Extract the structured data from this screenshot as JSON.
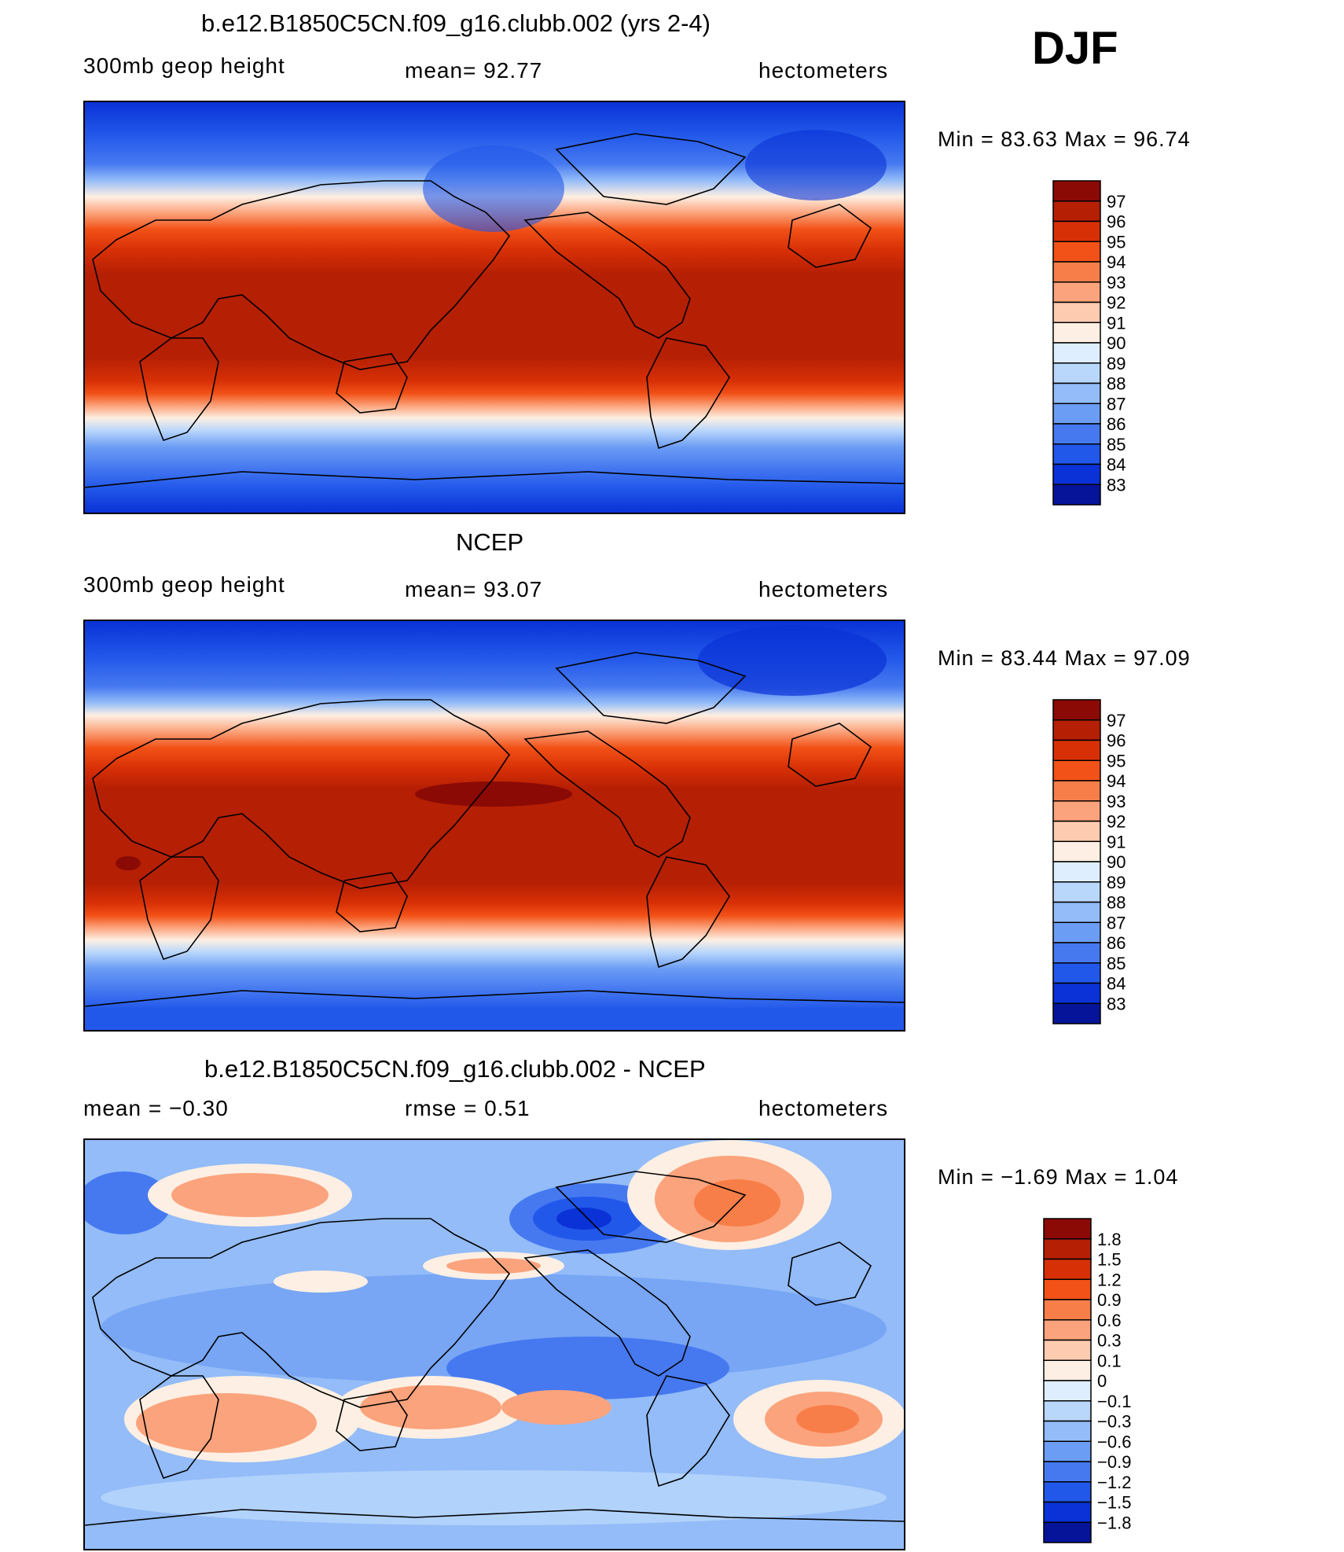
{
  "season": "DJF",
  "colorbar_colors_main": [
    "#8b0a05",
    "#b51f04",
    "#d83006",
    "#f25117",
    "#f87e49",
    "#fba37c",
    "#fdcbb0",
    "#fdefe3",
    "#deeefe",
    "#b9d7fb",
    "#93bcf8",
    "#6c9df4",
    "#4679f0",
    "#2258ea",
    "#0a32d6",
    "#06149a"
  ],
  "colorbar_colors_diff": [
    "#8b0a05",
    "#b51f04",
    "#d83006",
    "#f25117",
    "#f87e49",
    "#fba37c",
    "#fdcbb0",
    "#fdefe3",
    "#deeefe",
    "#b9d7fb",
    "#93bcf8",
    "#6c9df4",
    "#4679f0",
    "#2258ea",
    "#0a32d6",
    "#06149a"
  ],
  "panels": [
    {
      "title": "b.e12.B1850C5CN.f09_g16.clubb.002 (yrs 2-4)",
      "left_label": "300mb  geop  height",
      "center_label": "mean=   92.77",
      "right_label": "hectometers",
      "minmax": "Min  =    83.63  Max  =    96.74",
      "colorbar_labels": [
        "97",
        "96",
        "95",
        "94",
        "93",
        "92",
        "91",
        "90",
        "89",
        "88",
        "87",
        "86",
        "85",
        "84",
        "83"
      ]
    },
    {
      "title": "NCEP",
      "left_label": "300mb  geop  height",
      "center_label": "mean=   93.07",
      "right_label": "hectometers",
      "minmax": "Min  =    83.44  Max  =    97.09",
      "colorbar_labels": [
        "97",
        "96",
        "95",
        "94",
        "93",
        "92",
        "91",
        "90",
        "89",
        "88",
        "87",
        "86",
        "85",
        "84",
        "83"
      ]
    },
    {
      "title": "b.e12.B1850C5CN.f09_g16.clubb.002 - NCEP",
      "left_label": "mean  =    −0.30",
      "center_label": "rmse  =     0.51",
      "right_label": "hectometers",
      "minmax": "Min  =    −1.69  Max  =      1.04",
      "colorbar_labels": [
        "1.8",
        "1.5",
        "1.2",
        "0.9",
        "0.6",
        "0.3",
        "0.1",
        "0",
        "−0.1",
        "−0.3",
        "−0.6",
        "−0.9",
        "−1.2",
        "−1.5",
        "−1.8"
      ]
    }
  ]
}
